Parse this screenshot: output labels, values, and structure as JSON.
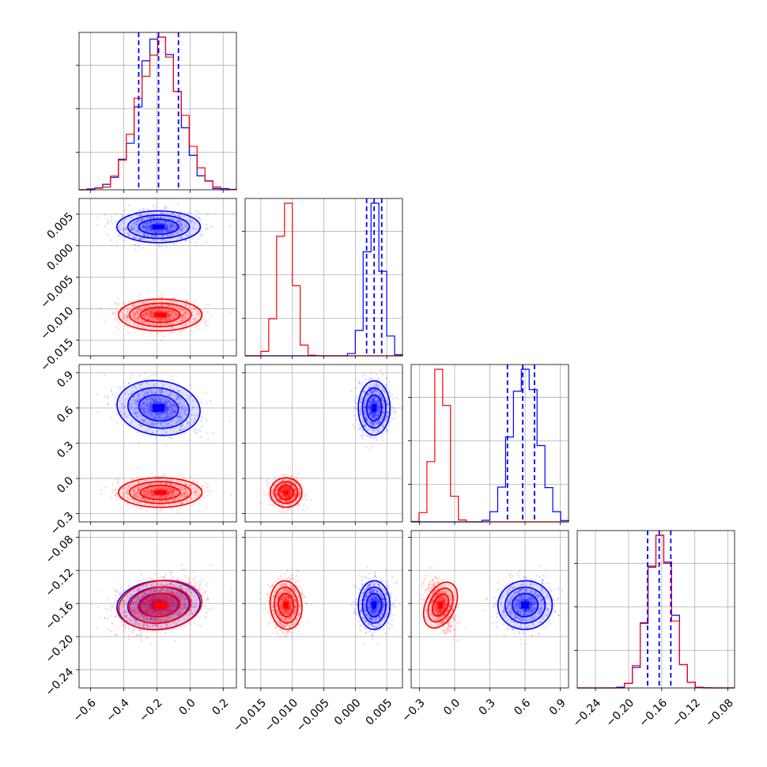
{
  "chart_data": {
    "type": "corner",
    "parameters": 4,
    "series": [
      {
        "color": "#0000ff",
        "mean": [
          -0.19,
          0.003,
          0.6,
          -0.162
        ],
        "std": [
          0.12,
          0.0012,
          0.11,
          0.014
        ],
        "quantile_lines": true
      },
      {
        "color": "#ff0000",
        "mean": [
          -0.18,
          -0.011,
          -0.12,
          -0.162
        ],
        "std": [
          0.12,
          0.0012,
          0.06,
          0.014
        ],
        "quantile_lines": false
      }
    ],
    "correlations": {
      "blue": {
        "0-3": 0.25,
        "2-3": 0.1,
        "0-2": -0.35
      },
      "red": {
        "0-3": 0.35,
        "2-3": -0.55,
        "1-3": 0.1
      }
    },
    "axes": [
      {
        "range": [
          -0.67,
          0.28
        ],
        "ticks": [
          -0.6,
          -0.4,
          -0.2,
          0.0,
          0.2
        ],
        "labels": [
          "−0.6",
          "−0.4",
          "−0.2",
          "0.0",
          "0.2"
        ]
      },
      {
        "range": [
          -0.0175,
          0.0075
        ],
        "ticks": [
          -0.015,
          -0.01,
          -0.005,
          0.0,
          0.005
        ],
        "labels": [
          "−0.015",
          "−0.010",
          "−0.005",
          "0.000",
          "0.005"
        ]
      },
      {
        "range": [
          -0.37,
          0.97
        ],
        "ticks": [
          -0.3,
          0.0,
          0.3,
          0.6,
          0.9
        ],
        "labels": [
          "−0.3",
          "0.0",
          "0.3",
          "0.6",
          "0.9"
        ]
      },
      {
        "range": [
          -0.262,
          -0.072
        ],
        "ticks": [
          -0.24,
          -0.2,
          -0.16,
          -0.12,
          -0.08
        ],
        "labels": [
          "−0.24",
          "−0.20",
          "−0.16",
          "−0.12",
          "−0.08"
        ]
      }
    ],
    "blue_quantiles": [
      [
        -0.31,
        -0.19,
        -0.07
      ],
      [
        0.0018,
        0.003,
        0.0042
      ],
      [
        0.45,
        0.58,
        0.68
      ],
      [
        -0.177,
        -0.163,
        -0.149
      ]
    ]
  }
}
